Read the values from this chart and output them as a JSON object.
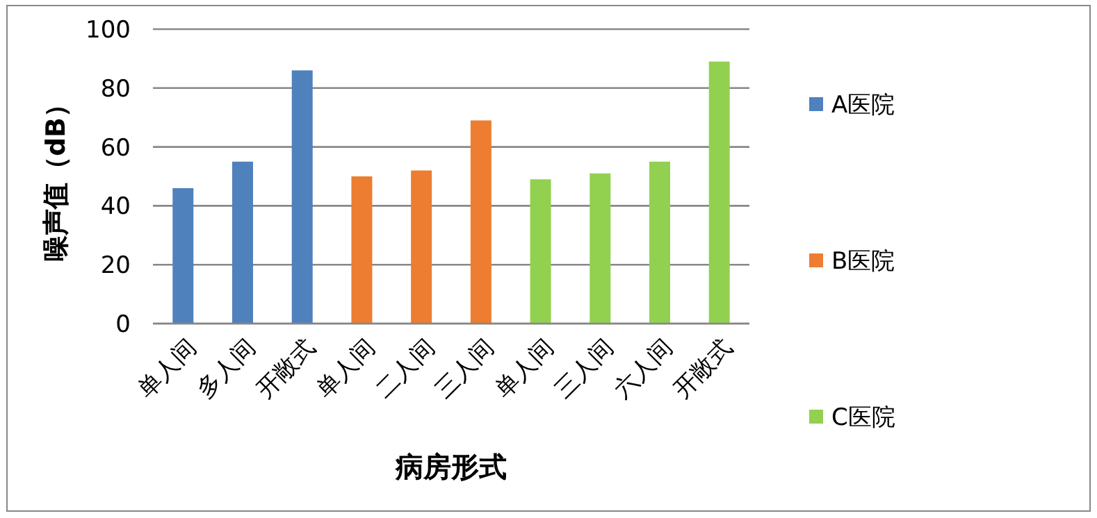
{
  "chart_data": {
    "type": "bar",
    "categories": [
      "单人间",
      "多人间",
      "开敞式",
      "单人间",
      "二人间",
      "三人间",
      "单人间",
      "三人间",
      "六人间",
      "开敞式"
    ],
    "series": [
      {
        "name": "A医院",
        "color": "#4f81bd",
        "values": [
          46,
          55,
          86,
          null,
          null,
          null,
          null,
          null,
          null,
          null
        ]
      },
      {
        "name": "B医院",
        "color": "#ed7d31",
        "values": [
          null,
          null,
          null,
          50,
          52,
          69,
          null,
          null,
          null,
          null
        ]
      },
      {
        "name": "C医院",
        "color": "#92d050",
        "values": [
          null,
          null,
          null,
          null,
          null,
          null,
          49,
          51,
          55,
          89
        ]
      }
    ],
    "xlabel": "病房形式",
    "ylabel": "噪声值（dB）",
    "ylim": [
      0,
      100
    ],
    "yticks": [
      0,
      20,
      40,
      60,
      80,
      100
    ],
    "grid": "y",
    "legend": "right"
  }
}
